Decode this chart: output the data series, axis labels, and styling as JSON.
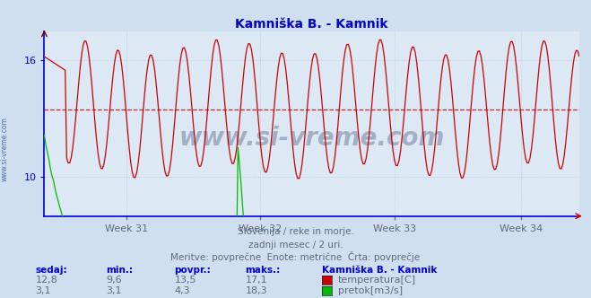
{
  "title": "Kamniška B. - Kamnik",
  "title_color": "#0000cc",
  "bg_color": "#d0dff0",
  "plot_bg_color": "#dce8f4",
  "grid_color": "#b8c8dc",
  "axis_left_color": "#0000dd",
  "axis_bottom_color": "#0000dd",
  "week_labels": [
    "Week 31",
    "Week 32",
    "Week 33",
    "Week 34"
  ],
  "xlabel_color": "#606880",
  "n_points": 360,
  "temp_color": "#cc0000",
  "flow_color": "#00bb00",
  "temp_avg": 13.5,
  "temp_min": 9.6,
  "temp_max": 17.1,
  "temp_current": 12.8,
  "flow_avg": 4.3,
  "flow_min": 3.1,
  "flow_max": 18.3,
  "flow_current": 3.1,
  "ymin": 8.0,
  "ymax": 17.5,
  "yticks": [
    10,
    16
  ],
  "subtitle1": "Slovenija / reke in morje.",
  "subtitle2": "zadnji mesec / 2 uri.",
  "subtitle3": "Meritve: povprečne  Enote: metrične  Črta: povprečje",
  "legend_title": "Kamniška B. - Kamnik",
  "legend_temp": "temperatura[C]",
  "legend_flow": "pretok[m3/s]",
  "watermark": "www.si-vreme.com",
  "watermark_color": "#1a3060",
  "sidebar_text": "www.si-vreme.com",
  "sidebar_color": "#4060a0"
}
